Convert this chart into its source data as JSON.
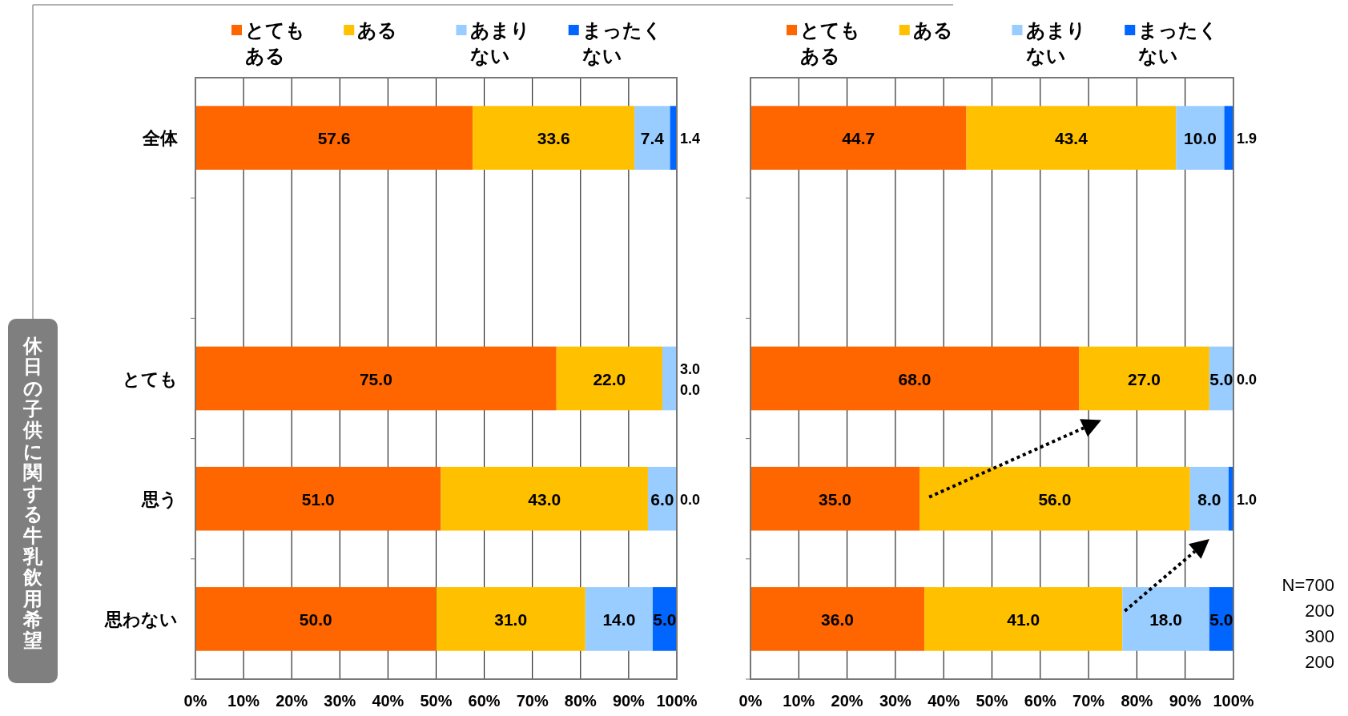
{
  "chart_data": [
    {
      "type": "bar",
      "orientation": "horizontal",
      "stacked": true,
      "categories": [
        "全体",
        null,
        "とても",
        "思う",
        "思わない"
      ],
      "series": [
        {
          "name": "とてもある",
          "color": "#ff6600",
          "values": [
            57.6,
            null,
            75.0,
            51.0,
            50.0
          ],
          "value_labels": [
            "57.6",
            null,
            "75.0",
            "51.0",
            "50.0"
          ]
        },
        {
          "name": "ある",
          "color": "#ffc000",
          "values": [
            33.6,
            null,
            22.0,
            43.0,
            31.0
          ],
          "value_labels": [
            "33.6",
            null,
            "22.0",
            "43.0",
            "31.0"
          ]
        },
        {
          "name": "あまりない",
          "color": "#99ccff",
          "values": [
            7.4,
            null,
            3.0,
            6.0,
            14.0
          ],
          "value_labels": [
            "7.4",
            null,
            "3.0",
            "6.0",
            "14.0"
          ]
        },
        {
          "name": "まったくない",
          "color": "#0066ff",
          "values": [
            1.4,
            null,
            0.0,
            0.0,
            5.0
          ],
          "value_labels": [
            "1.4",
            null,
            "0.0",
            "0.0",
            "5.0"
          ]
        }
      ],
      "xlim": [
        0,
        100
      ],
      "xticks": [
        {
          "value": 0,
          "label": "0%"
        },
        {
          "value": 10,
          "label": "10%"
        },
        {
          "value": 20,
          "label": "20%"
        },
        {
          "value": 30,
          "label": "30%"
        },
        {
          "value": 40,
          "label": "40%"
        },
        {
          "value": 50,
          "label": "50%"
        },
        {
          "value": 60,
          "label": "60%"
        },
        {
          "value": 70,
          "label": "70%"
        },
        {
          "value": 80,
          "label": "80%"
        },
        {
          "value": 90,
          "label": "90%"
        },
        {
          "value": 100,
          "label": "100%"
        }
      ],
      "grid": "x",
      "legend": "top",
      "annotations": [
        "休日の子供に関する牛乳飲用希望"
      ]
    },
    {
      "type": "bar",
      "orientation": "horizontal",
      "stacked": true,
      "categories": [
        null,
        null,
        null,
        null,
        null
      ],
      "tick_labels": "x",
      "series": [
        {
          "name": "とてもある",
          "color": "#ff6600",
          "values": [
            44.7,
            null,
            68.0,
            35.0,
            36.0
          ],
          "value_labels": [
            "44.7",
            null,
            "68.0",
            "35.0",
            "36.0"
          ]
        },
        {
          "name": "ある",
          "color": "#ffc000",
          "values": [
            43.4,
            null,
            27.0,
            56.0,
            41.0
          ],
          "value_labels": [
            "43.4",
            null,
            "27.0",
            "56.0",
            "41.0"
          ]
        },
        {
          "name": "あまりない",
          "color": "#99ccff",
          "values": [
            10.0,
            null,
            5.0,
            8.0,
            18.0
          ],
          "value_labels": [
            "10.0",
            null,
            "5.0",
            "8.0",
            "18.0"
          ]
        },
        {
          "name": "まったくない",
          "color": "#0066ff",
          "values": [
            1.9,
            null,
            0.0,
            1.0,
            5.0
          ],
          "value_labels": [
            "1.9",
            null,
            "0.0",
            "1.0",
            "5.0"
          ]
        }
      ],
      "xlim": [
        0,
        100
      ],
      "xticks": [
        {
          "value": 0,
          "label": "0%"
        },
        {
          "value": 10,
          "label": "10%"
        },
        {
          "value": 20,
          "label": "20%"
        },
        {
          "value": 30,
          "label": "30%"
        },
        {
          "value": 40,
          "label": "40%"
        },
        {
          "value": 50,
          "label": "50%"
        },
        {
          "value": 60,
          "label": "60%"
        },
        {
          "value": 70,
          "label": "70%"
        },
        {
          "value": 80,
          "label": "80%"
        },
        {
          "value": 90,
          "label": "90%"
        },
        {
          "value": 100,
          "label": "100%"
        }
      ],
      "grid": "x",
      "legend": "top",
      "annotations": [
        "N=700",
        "200",
        "300",
        "200"
      ]
    }
  ]
}
